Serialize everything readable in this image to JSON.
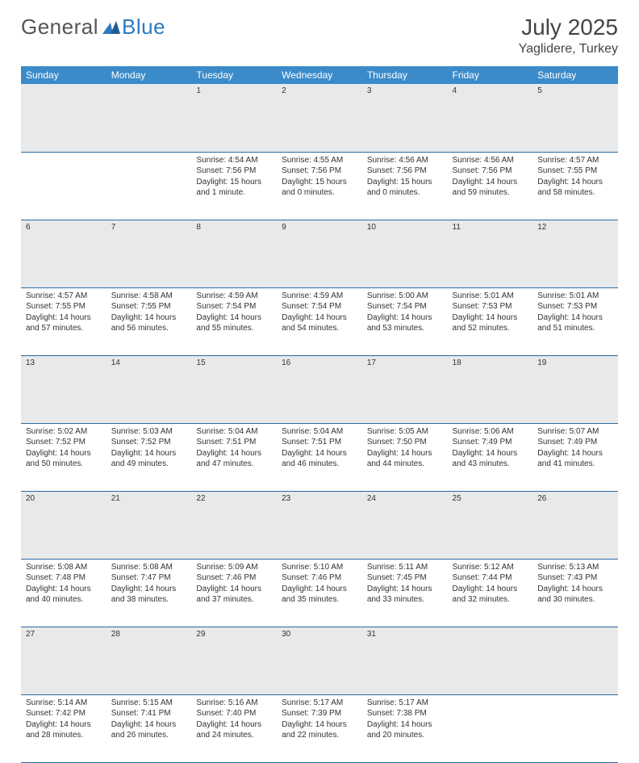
{
  "brand": {
    "part1": "General",
    "part2": "Blue"
  },
  "title": "July 2025",
  "location": "Yaglidere, Turkey",
  "weekday_labels": [
    "Sunday",
    "Monday",
    "Tuesday",
    "Wednesday",
    "Thursday",
    "Friday",
    "Saturday"
  ],
  "colors": {
    "header_bg": "#3b8bca",
    "header_fg": "#ffffff",
    "daynum_bg": "#e8e9ea",
    "row_divider": "#2d6aa3",
    "brand_blue": "#2b7ac0",
    "text": "#333333"
  },
  "first_weekday_index": 2,
  "days": [
    {
      "n": 1,
      "sunrise": "4:54 AM",
      "sunset": "7:56 PM",
      "daylight": "15 hours and 1 minute."
    },
    {
      "n": 2,
      "sunrise": "4:55 AM",
      "sunset": "7:56 PM",
      "daylight": "15 hours and 0 minutes."
    },
    {
      "n": 3,
      "sunrise": "4:56 AM",
      "sunset": "7:56 PM",
      "daylight": "15 hours and 0 minutes."
    },
    {
      "n": 4,
      "sunrise": "4:56 AM",
      "sunset": "7:56 PM",
      "daylight": "14 hours and 59 minutes."
    },
    {
      "n": 5,
      "sunrise": "4:57 AM",
      "sunset": "7:55 PM",
      "daylight": "14 hours and 58 minutes."
    },
    {
      "n": 6,
      "sunrise": "4:57 AM",
      "sunset": "7:55 PM",
      "daylight": "14 hours and 57 minutes."
    },
    {
      "n": 7,
      "sunrise": "4:58 AM",
      "sunset": "7:55 PM",
      "daylight": "14 hours and 56 minutes."
    },
    {
      "n": 8,
      "sunrise": "4:59 AM",
      "sunset": "7:54 PM",
      "daylight": "14 hours and 55 minutes."
    },
    {
      "n": 9,
      "sunrise": "4:59 AM",
      "sunset": "7:54 PM",
      "daylight": "14 hours and 54 minutes."
    },
    {
      "n": 10,
      "sunrise": "5:00 AM",
      "sunset": "7:54 PM",
      "daylight": "14 hours and 53 minutes."
    },
    {
      "n": 11,
      "sunrise": "5:01 AM",
      "sunset": "7:53 PM",
      "daylight": "14 hours and 52 minutes."
    },
    {
      "n": 12,
      "sunrise": "5:01 AM",
      "sunset": "7:53 PM",
      "daylight": "14 hours and 51 minutes."
    },
    {
      "n": 13,
      "sunrise": "5:02 AM",
      "sunset": "7:52 PM",
      "daylight": "14 hours and 50 minutes."
    },
    {
      "n": 14,
      "sunrise": "5:03 AM",
      "sunset": "7:52 PM",
      "daylight": "14 hours and 49 minutes."
    },
    {
      "n": 15,
      "sunrise": "5:04 AM",
      "sunset": "7:51 PM",
      "daylight": "14 hours and 47 minutes."
    },
    {
      "n": 16,
      "sunrise": "5:04 AM",
      "sunset": "7:51 PM",
      "daylight": "14 hours and 46 minutes."
    },
    {
      "n": 17,
      "sunrise": "5:05 AM",
      "sunset": "7:50 PM",
      "daylight": "14 hours and 44 minutes."
    },
    {
      "n": 18,
      "sunrise": "5:06 AM",
      "sunset": "7:49 PM",
      "daylight": "14 hours and 43 minutes."
    },
    {
      "n": 19,
      "sunrise": "5:07 AM",
      "sunset": "7:49 PM",
      "daylight": "14 hours and 41 minutes."
    },
    {
      "n": 20,
      "sunrise": "5:08 AM",
      "sunset": "7:48 PM",
      "daylight": "14 hours and 40 minutes."
    },
    {
      "n": 21,
      "sunrise": "5:08 AM",
      "sunset": "7:47 PM",
      "daylight": "14 hours and 38 minutes."
    },
    {
      "n": 22,
      "sunrise": "5:09 AM",
      "sunset": "7:46 PM",
      "daylight": "14 hours and 37 minutes."
    },
    {
      "n": 23,
      "sunrise": "5:10 AM",
      "sunset": "7:46 PM",
      "daylight": "14 hours and 35 minutes."
    },
    {
      "n": 24,
      "sunrise": "5:11 AM",
      "sunset": "7:45 PM",
      "daylight": "14 hours and 33 minutes."
    },
    {
      "n": 25,
      "sunrise": "5:12 AM",
      "sunset": "7:44 PM",
      "daylight": "14 hours and 32 minutes."
    },
    {
      "n": 26,
      "sunrise": "5:13 AM",
      "sunset": "7:43 PM",
      "daylight": "14 hours and 30 minutes."
    },
    {
      "n": 27,
      "sunrise": "5:14 AM",
      "sunset": "7:42 PM",
      "daylight": "14 hours and 28 minutes."
    },
    {
      "n": 28,
      "sunrise": "5:15 AM",
      "sunset": "7:41 PM",
      "daylight": "14 hours and 26 minutes."
    },
    {
      "n": 29,
      "sunrise": "5:16 AM",
      "sunset": "7:40 PM",
      "daylight": "14 hours and 24 minutes."
    },
    {
      "n": 30,
      "sunrise": "5:17 AM",
      "sunset": "7:39 PM",
      "daylight": "14 hours and 22 minutes."
    },
    {
      "n": 31,
      "sunrise": "5:17 AM",
      "sunset": "7:38 PM",
      "daylight": "14 hours and 20 minutes."
    }
  ],
  "labels": {
    "sunrise": "Sunrise:",
    "sunset": "Sunset:",
    "daylight": "Daylight:"
  }
}
